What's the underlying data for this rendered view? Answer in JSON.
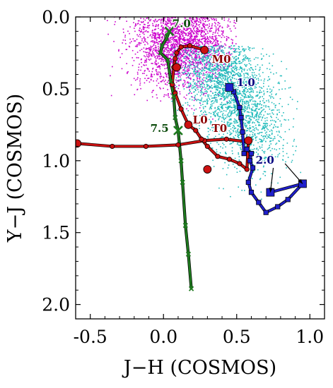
{
  "chart_data": {
    "type": "scatter",
    "xlabel": "J−H (COSMOS)",
    "ylabel": "Y−J (COSMOS)",
    "xlim": [
      -0.6,
      1.1
    ],
    "ylim": [
      2.1,
      0.0
    ],
    "y_inverted": true,
    "x_ticks": [
      "-0.5",
      "0.0",
      "0.5",
      "1.0"
    ],
    "x_tick_values": [
      -0.5,
      0.0,
      0.5,
      1.0
    ],
    "y_ticks": [
      "0.0",
      "0.5",
      "1.0",
      "1.5",
      "2.0"
    ],
    "y_tick_values": [
      0.0,
      0.5,
      1.0,
      1.5,
      2.0
    ],
    "grid": false,
    "legend": "none",
    "colors": {
      "magenta": "#cc00cc",
      "cyan": "#22bbbb",
      "red": "#cc1111",
      "blue": "#1f1fcc",
      "green": "#1e7a1e",
      "dark_red": "#8b0000",
      "dark_blue": "#000080",
      "dark_green": "#0a4a0a"
    },
    "clouds": [
      {
        "color": "magenta",
        "center": [
          0.12,
          0.18
        ],
        "spread": [
          0.17,
          0.16
        ],
        "extent_x": [
          -0.45,
          0.5
        ],
        "extent_y": [
          0.0,
          0.9
        ]
      },
      {
        "color": "cyan",
        "center": [
          0.45,
          0.5
        ],
        "spread": [
          0.15,
          0.26
        ],
        "extent_x": [
          0.05,
          0.95
        ],
        "extent_y": [
          0.2,
          1.4
        ]
      }
    ],
    "series": [
      {
        "color": "red",
        "marker": "circle",
        "x": [
          -0.59,
          -0.35,
          -0.12,
          0.1,
          0.28,
          0.43,
          0.58,
          0.57,
          0.52,
          0.45,
          0.37,
          0.3,
          0.26,
          0.22,
          0.17,
          0.12,
          0.08,
          0.06,
          0.07,
          0.08,
          0.09,
          0.12,
          0.18,
          0.28
        ],
        "y": [
          0.88,
          0.9,
          0.9,
          0.89,
          0.86,
          0.85,
          0.87,
          1.06,
          1.02,
          0.99,
          0.97,
          0.9,
          0.85,
          0.79,
          0.75,
          0.64,
          0.53,
          0.47,
          0.35,
          0.29,
          0.25,
          0.21,
          0.2,
          0.23
        ]
      },
      {
        "color": "blue",
        "marker": "square",
        "x": [
          0.45,
          0.48,
          0.52,
          0.53,
          0.54,
          0.55,
          0.57,
          0.6,
          0.59,
          0.61,
          0.58,
          0.6,
          0.65,
          0.7,
          0.78,
          0.85,
          0.95,
          0.73
        ],
        "y": [
          0.49,
          0.52,
          0.63,
          0.7,
          0.8,
          0.95,
          0.92,
          0.95,
          1.0,
          1.05,
          1.15,
          1.22,
          1.29,
          1.36,
          1.32,
          1.27,
          1.16,
          1.22
        ]
      },
      {
        "color": "green",
        "marker": "x",
        "x": [
          0.04,
          0.02,
          -0.01,
          -0.02,
          0.03,
          0.05,
          0.07,
          0.08,
          0.1,
          0.12,
          0.13,
          0.15,
          0.17,
          0.19
        ],
        "y": [
          0.1,
          0.15,
          0.2,
          0.25,
          0.3,
          0.45,
          0.55,
          0.7,
          0.79,
          1.0,
          1.15,
          1.45,
          1.65,
          1.89
        ]
      }
    ],
    "big_markers": [
      {
        "series": "red",
        "x": [
          0.58,
          0.3,
          0.17,
          0.09,
          0.28,
          -0.59
        ],
        "y": [
          0.86,
          1.06,
          0.75,
          0.35,
          0.23,
          0.88
        ]
      },
      {
        "series": "blue",
        "x": [
          0.45,
          0.73,
          0.95
        ],
        "y": [
          0.49,
          1.22,
          1.16
        ]
      },
      {
        "series": "green",
        "x": [
          0.04,
          0.1
        ],
        "y": [
          0.1,
          0.79
        ]
      }
    ],
    "annotations": [
      {
        "text": "7.0",
        "color": "dark_green",
        "x": 0.06,
        "y": 0.07
      },
      {
        "text": "M0",
        "color": "dark_red",
        "x": 0.33,
        "y": 0.32
      },
      {
        "text": "1.0",
        "color": "dark_blue",
        "x": 0.5,
        "y": 0.48
      },
      {
        "text": "L0",
        "color": "dark_red",
        "x": 0.2,
        "y": 0.74
      },
      {
        "text": "7.5",
        "color": "dark_green",
        "x": -0.09,
        "y": 0.8
      },
      {
        "text": "T0",
        "color": "dark_red",
        "x": 0.33,
        "y": 0.8
      },
      {
        "text": "2.0",
        "color": "dark_blue",
        "x": 0.63,
        "y": 1.02
      }
    ],
    "arrows": [
      {
        "from": [
          0.75,
          1.05
        ],
        "to": [
          0.73,
          1.22
        ]
      },
      {
        "from": [
          0.83,
          1.02
        ],
        "to": [
          0.95,
          1.16
        ]
      }
    ]
  }
}
